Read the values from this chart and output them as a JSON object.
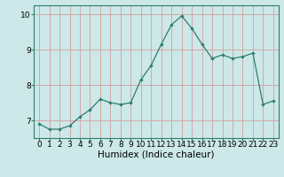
{
  "x": [
    0,
    1,
    2,
    3,
    4,
    5,
    6,
    7,
    8,
    9,
    10,
    11,
    12,
    13,
    14,
    15,
    16,
    17,
    18,
    19,
    20,
    21,
    22,
    23
  ],
  "y": [
    6.9,
    6.75,
    6.75,
    6.85,
    7.1,
    7.3,
    7.6,
    7.5,
    7.45,
    7.5,
    8.15,
    8.55,
    9.15,
    9.7,
    9.95,
    9.6,
    9.15,
    8.75,
    8.85,
    8.75,
    8.8,
    8.9,
    7.45,
    7.55
  ],
  "line_color": "#2e7d6e",
  "marker": "D",
  "marker_size": 2.2,
  "bg_color": "#cce8e8",
  "grid_color": "#d4a0a0",
  "xlabel": "Humidex (Indice chaleur)",
  "ylim": [
    6.5,
    10.25
  ],
  "xlim": [
    -0.5,
    23.5
  ],
  "yticks": [
    7,
    8,
    9,
    10
  ],
  "xticks": [
    0,
    1,
    2,
    3,
    4,
    5,
    6,
    7,
    8,
    9,
    10,
    11,
    12,
    13,
    14,
    15,
    16,
    17,
    18,
    19,
    20,
    21,
    22,
    23
  ],
  "tick_fontsize": 6.5,
  "xlabel_fontsize": 7.5
}
